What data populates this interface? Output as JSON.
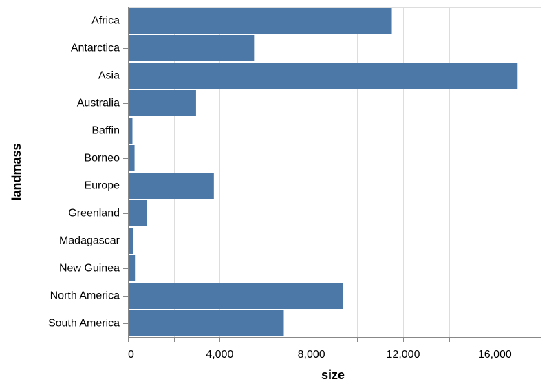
{
  "chart_data": {
    "type": "bar",
    "orientation": "horizontal",
    "categories": [
      "Africa",
      "Antarctica",
      "Asia",
      "Australia",
      "Baffin",
      "Borneo",
      "Europe",
      "Greenland",
      "Madagascar",
      "New Guinea",
      "North America",
      "South America"
    ],
    "values": [
      11506,
      5500,
      16988,
      2968,
      195,
      287,
      3745,
      840,
      227,
      306,
      9390,
      6795
    ],
    "xlabel": "size",
    "ylabel": "landmass",
    "xlim": [
      0,
      18000
    ],
    "x_ticks": [
      0,
      4000,
      8000,
      12000,
      16000
    ],
    "x_tick_labels": [
      "0",
      "4,000",
      "8,000",
      "12,000",
      "16,000"
    ],
    "x_minor_ticks": [
      2000,
      6000,
      10000,
      14000,
      18000
    ],
    "grid": true,
    "bar_color": "#4c78a8"
  }
}
